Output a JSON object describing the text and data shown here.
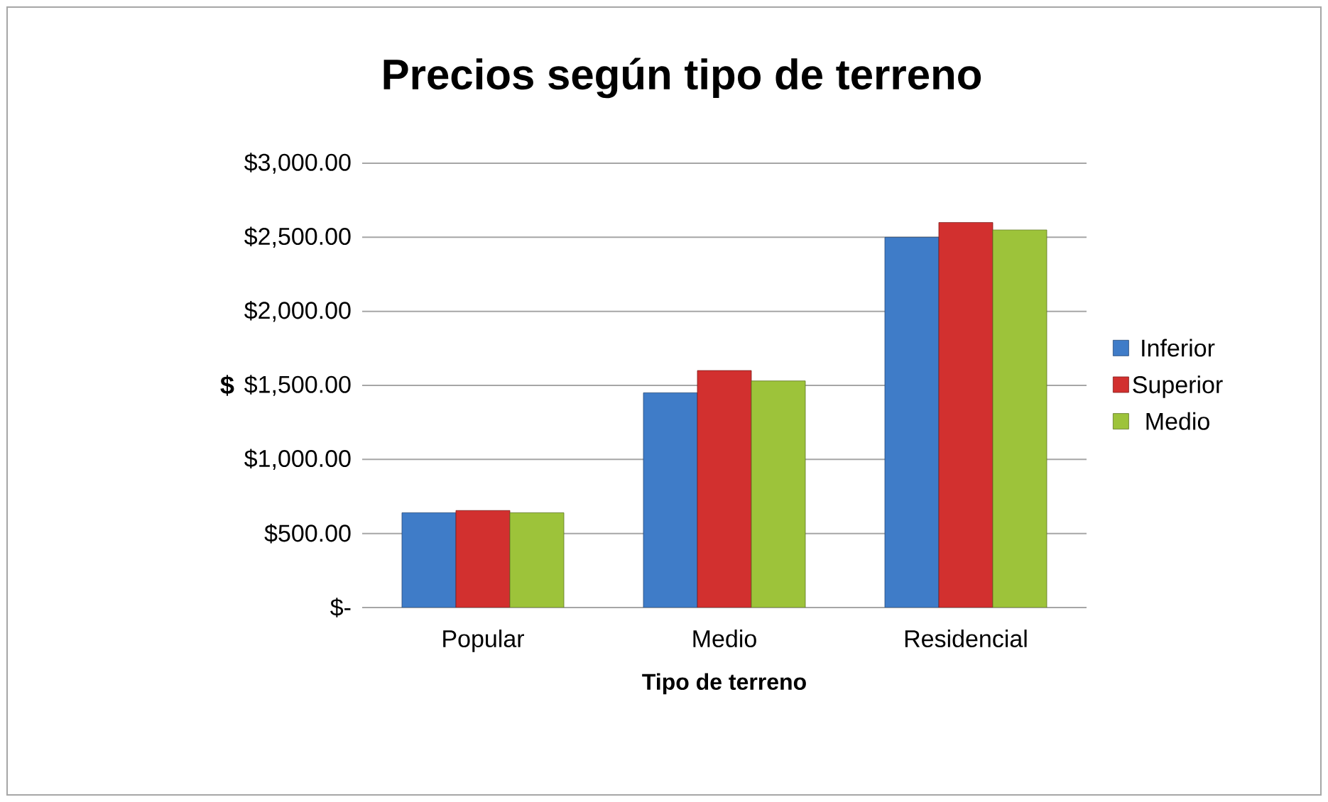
{
  "chart_data": {
    "type": "bar",
    "title": "Precios según tipo de terreno",
    "xlabel": "Tipo de terreno",
    "ylabel": "$",
    "categories": [
      "Popular",
      "Medio",
      "Residencial"
    ],
    "series": [
      {
        "name": "Inferior",
        "color": "#3f7cc8",
        "values": [
          640,
          1450,
          2500
        ]
      },
      {
        "name": "Superior",
        "color": "#d2302f",
        "values": [
          655,
          1600,
          2600
        ]
      },
      {
        "name": "Medio",
        "color": "#9dc33a",
        "values": [
          640,
          1530,
          2550
        ]
      }
    ],
    "ylim": [
      0,
      3000
    ],
    "yticks": [
      {
        "value": 0,
        "label": "$-"
      },
      {
        "value": 500,
        "label": "$500.00"
      },
      {
        "value": 1000,
        "label": "$1,000.00"
      },
      {
        "value": 1500,
        "label": "$1,500.00"
      },
      {
        "value": 2000,
        "label": "$2,000.00"
      },
      {
        "value": 2500,
        "label": "$2,500.00"
      },
      {
        "value": 3000,
        "label": "$3,000.00"
      }
    ],
    "grid": "y",
    "legend": "right"
  }
}
